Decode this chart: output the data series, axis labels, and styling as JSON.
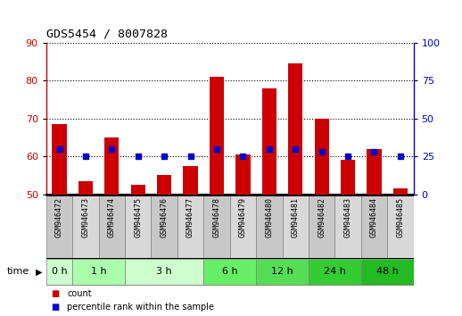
{
  "title": "GDS5454 / 8007828",
  "samples": [
    "GSM946472",
    "GSM946473",
    "GSM946474",
    "GSM946475",
    "GSM946476",
    "GSM946477",
    "GSM946478",
    "GSM946479",
    "GSM946480",
    "GSM946481",
    "GSM946482",
    "GSM946483",
    "GSM946484",
    "GSM946485"
  ],
  "counts": [
    68.5,
    53.5,
    65.0,
    52.5,
    55.0,
    57.5,
    81.0,
    60.5,
    78.0,
    84.5,
    70.0,
    59.0,
    62.0,
    51.5
  ],
  "percentile_ranks": [
    30,
    25,
    30,
    25,
    25,
    25,
    30,
    25,
    30,
    30,
    28,
    25,
    28,
    25
  ],
  "time_groups": [
    {
      "label": "0 h",
      "start": 0,
      "end": 0,
      "color": "#ccffcc"
    },
    {
      "label": "1 h",
      "start": 1,
      "end": 2,
      "color": "#aaffaa"
    },
    {
      "label": "3 h",
      "start": 3,
      "end": 5,
      "color": "#ccffcc"
    },
    {
      "label": "6 h",
      "start": 6,
      "end": 7,
      "color": "#66ee66"
    },
    {
      "label": "12 h",
      "start": 8,
      "end": 9,
      "color": "#55dd55"
    },
    {
      "label": "24 h",
      "start": 10,
      "end": 11,
      "color": "#33cc33"
    },
    {
      "label": "48 h",
      "start": 12,
      "end": 13,
      "color": "#22bb22"
    }
  ],
  "ylim_left": [
    50,
    90
  ],
  "ylim_right": [
    0,
    100
  ],
  "yticks_left": [
    50,
    60,
    70,
    80,
    90
  ],
  "yticks_right": [
    0,
    25,
    50,
    75,
    100
  ],
  "bar_color": "#cc0000",
  "dot_color": "#0000cc",
  "bar_bottom": 50,
  "grid_color": "#000000",
  "background_color": "#ffffff",
  "legend_count_label": "count",
  "legend_pct_label": "percentile rank within the sample",
  "sample_box_color_odd": "#d0d0d0",
  "sample_box_color_even": "#c0c0c0"
}
